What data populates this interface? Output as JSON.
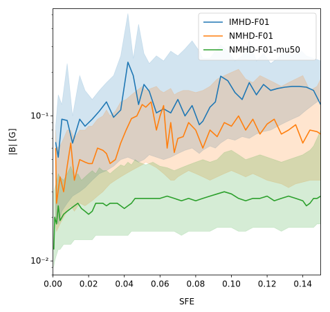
{
  "chart_data": {
    "type": "line",
    "xlabel": "SFE",
    "ylabel": "|B| [G]",
    "xlim": [
      0.0,
      0.15
    ],
    "ylim": [
      0.008,
      0.55
    ],
    "yscale": "log",
    "grid": false,
    "legend_position": "top-right",
    "x_ticks": [
      0.0,
      0.02,
      0.04,
      0.06,
      0.08,
      0.1,
      0.12,
      0.14
    ],
    "x_tick_labels": [
      "0.00",
      "0.02",
      "0.04",
      "0.06",
      "0.08",
      "0.10",
      "0.12",
      "0.14"
    ],
    "y_ticks": [
      0.01,
      0.1
    ],
    "y_tick_labels": [
      "10⁻²",
      "10⁻¹"
    ],
    "series": [
      {
        "name": "IMHD-F01",
        "color": "#1f77b4",
        "x": [
          0.0015,
          0.003,
          0.005,
          0.008,
          0.011,
          0.015,
          0.018,
          0.022,
          0.026,
          0.03,
          0.034,
          0.038,
          0.042,
          0.045,
          0.048,
          0.051,
          0.054,
          0.058,
          0.062,
          0.066,
          0.07,
          0.074,
          0.078,
          0.082,
          0.084,
          0.088,
          0.091,
          0.094,
          0.098,
          0.102,
          0.106,
          0.11,
          0.114,
          0.118,
          0.122,
          0.126,
          0.13,
          0.134,
          0.138,
          0.142,
          0.146,
          0.15
        ],
        "y": [
          0.066,
          0.052,
          0.095,
          0.093,
          0.065,
          0.095,
          0.085,
          0.095,
          0.108,
          0.125,
          0.098,
          0.11,
          0.235,
          0.19,
          0.12,
          0.165,
          0.148,
          0.105,
          0.112,
          0.105,
          0.13,
          0.1,
          0.118,
          0.087,
          0.092,
          0.115,
          0.125,
          0.188,
          0.175,
          0.145,
          0.13,
          0.17,
          0.14,
          0.165,
          0.15,
          0.155,
          0.158,
          0.16,
          0.16,
          0.158,
          0.15,
          0.12
        ],
        "band_upper": [
          0.085,
          0.14,
          0.12,
          0.23,
          0.1,
          0.19,
          0.15,
          0.13,
          0.15,
          0.17,
          0.19,
          0.26,
          0.51,
          0.25,
          0.43,
          0.27,
          0.23,
          0.26,
          0.24,
          0.28,
          0.26,
          0.29,
          0.33,
          0.28,
          0.25,
          0.25,
          0.28,
          0.31,
          0.28,
          0.24,
          0.26,
          0.33,
          0.24,
          0.27,
          0.23,
          0.25,
          0.28,
          0.26,
          0.29,
          0.26,
          0.25,
          0.24
        ],
        "band_lower": [
          0.02,
          0.018,
          0.022,
          0.025,
          0.028,
          0.03,
          0.032,
          0.036,
          0.04,
          0.042,
          0.045,
          0.05,
          0.052,
          0.05,
          0.048,
          0.05,
          0.054,
          0.052,
          0.05,
          0.052,
          0.055,
          0.058,
          0.06,
          0.055,
          0.058,
          0.062,
          0.06,
          0.065,
          0.07,
          0.068,
          0.072,
          0.07,
          0.075,
          0.078,
          0.08,
          0.085,
          0.09,
          0.095,
          0.1,
          0.11,
          0.12,
          0.13
        ]
      },
      {
        "name": "NMHD-F01",
        "color": "#ff7f0e",
        "x": [
          0.0015,
          0.002,
          0.004,
          0.006,
          0.008,
          0.01,
          0.012,
          0.015,
          0.018,
          0.02,
          0.022,
          0.025,
          0.028,
          0.03,
          0.032,
          0.035,
          0.038,
          0.041,
          0.044,
          0.047,
          0.05,
          0.052,
          0.055,
          0.058,
          0.06,
          0.062,
          0.064,
          0.066,
          0.068,
          0.07,
          0.073,
          0.076,
          0.08,
          0.084,
          0.088,
          0.092,
          0.096,
          0.1,
          0.104,
          0.108,
          0.112,
          0.116,
          0.12,
          0.124,
          0.128,
          0.132,
          0.136,
          0.14,
          0.144,
          0.148,
          0.15
        ],
        "y": [
          0.06,
          0.025,
          0.038,
          0.03,
          0.045,
          0.065,
          0.036,
          0.05,
          0.048,
          0.047,
          0.047,
          0.06,
          0.058,
          0.055,
          0.047,
          0.05,
          0.065,
          0.08,
          0.096,
          0.1,
          0.12,
          0.115,
          0.125,
          0.08,
          0.1,
          0.118,
          0.06,
          0.09,
          0.056,
          0.07,
          0.072,
          0.09,
          0.08,
          0.06,
          0.08,
          0.072,
          0.09,
          0.085,
          0.1,
          0.08,
          0.095,
          0.075,
          0.088,
          0.095,
          0.075,
          0.08,
          0.087,
          0.065,
          0.08,
          0.078,
          0.075
        ],
        "band_upper": [
          0.08,
          0.06,
          0.062,
          0.07,
          0.08,
          0.08,
          0.07,
          0.08,
          0.08,
          0.085,
          0.085,
          0.095,
          0.1,
          0.11,
          0.1,
          0.108,
          0.125,
          0.13,
          0.14,
          0.15,
          0.16,
          0.15,
          0.155,
          0.16,
          0.15,
          0.145,
          0.15,
          0.155,
          0.14,
          0.145,
          0.15,
          0.15,
          0.145,
          0.15,
          0.16,
          0.18,
          0.19,
          0.2,
          0.21,
          0.18,
          0.17,
          0.19,
          0.18,
          0.17,
          0.16,
          0.17,
          0.18,
          0.19,
          0.15,
          0.16,
          0.18
        ],
        "band_lower": [
          0.018,
          0.016,
          0.018,
          0.02,
          0.022,
          0.024,
          0.022,
          0.025,
          0.024,
          0.025,
          0.026,
          0.028,
          0.03,
          0.032,
          0.034,
          0.036,
          0.038,
          0.04,
          0.042,
          0.044,
          0.046,
          0.048,
          0.046,
          0.044,
          0.042,
          0.04,
          0.038,
          0.036,
          0.036,
          0.038,
          0.04,
          0.042,
          0.04,
          0.038,
          0.036,
          0.038,
          0.04,
          0.042,
          0.04,
          0.038,
          0.04,
          0.038,
          0.036,
          0.035,
          0.034,
          0.032,
          0.034,
          0.035,
          0.036,
          0.036,
          0.036
        ]
      },
      {
        "name": "NMHD-F01-mu50",
        "color": "#2ca02c",
        "x": [
          0.0005,
          0.001,
          0.002,
          0.003,
          0.004,
          0.006,
          0.008,
          0.01,
          0.012,
          0.014,
          0.016,
          0.018,
          0.02,
          0.022,
          0.024,
          0.026,
          0.028,
          0.03,
          0.032,
          0.034,
          0.036,
          0.038,
          0.04,
          0.042,
          0.044,
          0.046,
          0.048,
          0.052,
          0.056,
          0.06,
          0.064,
          0.068,
          0.072,
          0.076,
          0.08,
          0.084,
          0.088,
          0.092,
          0.096,
          0.1,
          0.104,
          0.108,
          0.112,
          0.116,
          0.12,
          0.124,
          0.128,
          0.132,
          0.136,
          0.14,
          0.142,
          0.144,
          0.146,
          0.148,
          0.15
        ],
        "y": [
          0.012,
          0.02,
          0.018,
          0.024,
          0.019,
          0.021,
          0.022,
          0.023,
          0.024,
          0.025,
          0.023,
          0.022,
          0.021,
          0.022,
          0.025,
          0.025,
          0.025,
          0.024,
          0.025,
          0.025,
          0.025,
          0.024,
          0.023,
          0.024,
          0.025,
          0.027,
          0.027,
          0.027,
          0.027,
          0.027,
          0.028,
          0.027,
          0.026,
          0.027,
          0.026,
          0.027,
          0.028,
          0.029,
          0.03,
          0.029,
          0.027,
          0.026,
          0.027,
          0.027,
          0.028,
          0.026,
          0.027,
          0.028,
          0.027,
          0.026,
          0.024,
          0.025,
          0.027,
          0.027,
          0.028
        ],
        "band_upper": [
          0.03,
          0.032,
          0.035,
          0.04,
          0.038,
          0.036,
          0.04,
          0.045,
          0.038,
          0.04,
          0.036,
          0.038,
          0.04,
          0.042,
          0.04,
          0.044,
          0.042,
          0.042,
          0.04,
          0.042,
          0.044,
          0.046,
          0.045,
          0.048,
          0.046,
          0.05,
          0.048,
          0.046,
          0.048,
          0.045,
          0.044,
          0.042,
          0.044,
          0.046,
          0.048,
          0.05,
          0.048,
          0.05,
          0.056,
          0.058,
          0.054,
          0.05,
          0.052,
          0.054,
          0.052,
          0.05,
          0.048,
          0.05,
          0.052,
          0.054,
          0.056,
          0.058,
          0.062,
          0.07,
          0.08
        ],
        "band_lower": [
          0.009,
          0.01,
          0.011,
          0.012,
          0.012,
          0.013,
          0.013,
          0.013,
          0.014,
          0.014,
          0.014,
          0.014,
          0.014,
          0.014,
          0.015,
          0.015,
          0.015,
          0.015,
          0.015,
          0.015,
          0.015,
          0.015,
          0.015,
          0.015,
          0.016,
          0.016,
          0.016,
          0.016,
          0.016,
          0.016,
          0.016,
          0.016,
          0.015,
          0.016,
          0.016,
          0.016,
          0.016,
          0.017,
          0.017,
          0.017,
          0.016,
          0.016,
          0.017,
          0.017,
          0.017,
          0.017,
          0.016,
          0.017,
          0.017,
          0.017,
          0.017,
          0.017,
          0.017,
          0.018,
          0.018
        ]
      }
    ]
  }
}
